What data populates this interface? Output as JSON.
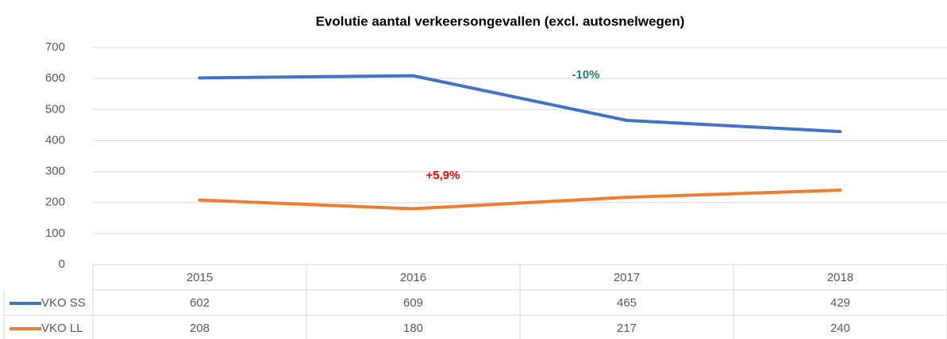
{
  "chart_data": {
    "type": "line",
    "title": "Evolutie aantal verkeersongevallen (excl. autosnelwegen)",
    "categories": [
      "2015",
      "2016",
      "2017",
      "2018"
    ],
    "series": [
      {
        "name": "VKO SS",
        "color": "#4472c4",
        "values": [
          602,
          609,
          465,
          429
        ]
      },
      {
        "name": "VKO LL",
        "color": "#ed7d31",
        "values": [
          208,
          180,
          217,
          240
        ]
      }
    ],
    "ylim": [
      0,
      700
    ],
    "yticks": [
      0,
      100,
      200,
      300,
      400,
      500,
      600,
      700
    ],
    "grid": true,
    "annotations": [
      {
        "text": "-10%",
        "color": "#1f7f8a"
      },
      {
        "text": "+5,9%",
        "color": "#ff0000"
      }
    ],
    "data_table": true
  }
}
